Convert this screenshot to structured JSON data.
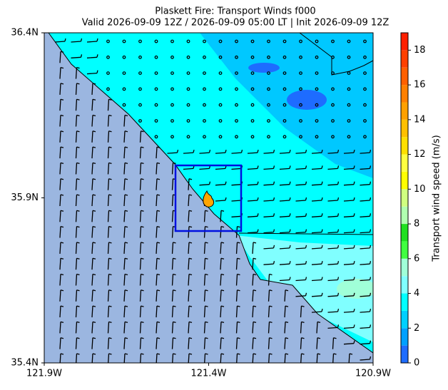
{
  "chart_data": {
    "type": "map",
    "title": "Plaskett Fire: Transport Winds f000",
    "subtitle": "Valid 2026-09-09 12Z / 2026-09-09 05:00 LT | Init 2026-09-09 12Z",
    "xlim": [
      -121.9,
      -120.9
    ],
    "xticks": [
      {
        "value": -121.9,
        "label": "121.9W"
      },
      {
        "value": -121.4,
        "label": "121.4W"
      },
      {
        "value": -120.9,
        "label": "120.9W"
      }
    ],
    "ylim": [
      35.4,
      36.4
    ],
    "yticks": [
      {
        "value": 35.4,
        "label": "35.4N"
      },
      {
        "value": 35.9,
        "label": "35.9N"
      },
      {
        "value": 36.4,
        "label": "36.4N"
      }
    ],
    "colorbar": {
      "label": "Transport wind speed (m/s)",
      "lim": [
        0,
        19
      ],
      "ticks": [
        0,
        2,
        4,
        6,
        8,
        10,
        12,
        14,
        16,
        18
      ],
      "colors": [
        "#1e6cff",
        "#00a0ff",
        "#00d0ff",
        "#00ffff",
        "#80ffff",
        "#a0ffd8",
        "#40ff40",
        "#20e020",
        "#b0ffb0",
        "#d0ff80",
        "#ffff00",
        "#ffff40",
        "#ffe000",
        "#ffc000",
        "#ffa000",
        "#ff8000",
        "#ff6000",
        "#ff4000",
        "#ff2000"
      ]
    }
  }
}
